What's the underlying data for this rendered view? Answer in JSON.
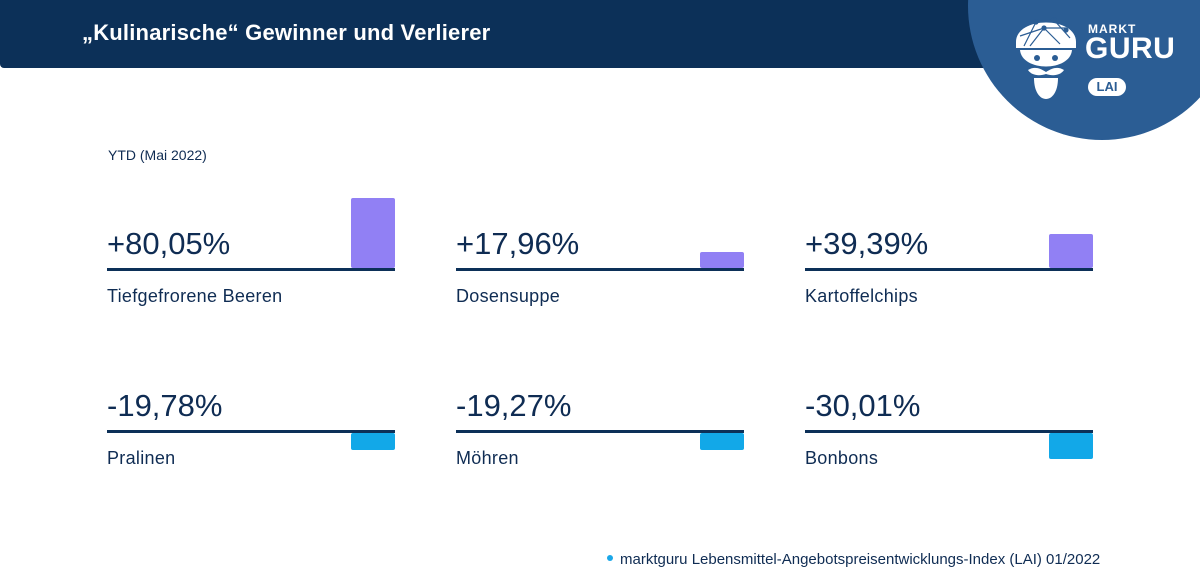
{
  "header": {
    "title": "„Kulinarische“ Gewinner und Verlierer"
  },
  "logo": {
    "top_text": "MARKT",
    "main_text": "GURU",
    "badge": "LAI",
    "icon": "guru-mascot-icon"
  },
  "colors": {
    "header_bg": "#0c3058",
    "logo_bg": "#2b5d94",
    "gain": "#9180f4",
    "loss": "#12a8e8",
    "text": "#0f2c53"
  },
  "chart_data": {
    "type": "bar",
    "title": "„Kulinarische“ Gewinner und Verlierer",
    "subtitle": "YTD (Mai 2022)",
    "unit": "%",
    "categories": [
      "Tiefgefrorene Beeren",
      "Dosensuppe",
      "Kartoffelchips",
      "Pralinen",
      "Möhren",
      "Bonbons"
    ],
    "values": [
      80.05,
      17.96,
      39.39,
      -19.78,
      -19.27,
      -30.01
    ],
    "labels": [
      "+80,05%",
      "+17,96%",
      "+39,39%",
      "-19,78%",
      "-19,27%",
      "-30,01%"
    ],
    "grid": false,
    "source": "marktguru Lebensmittel-Angebotspreisentwicklungs-Index (LAI) 01/2022"
  }
}
